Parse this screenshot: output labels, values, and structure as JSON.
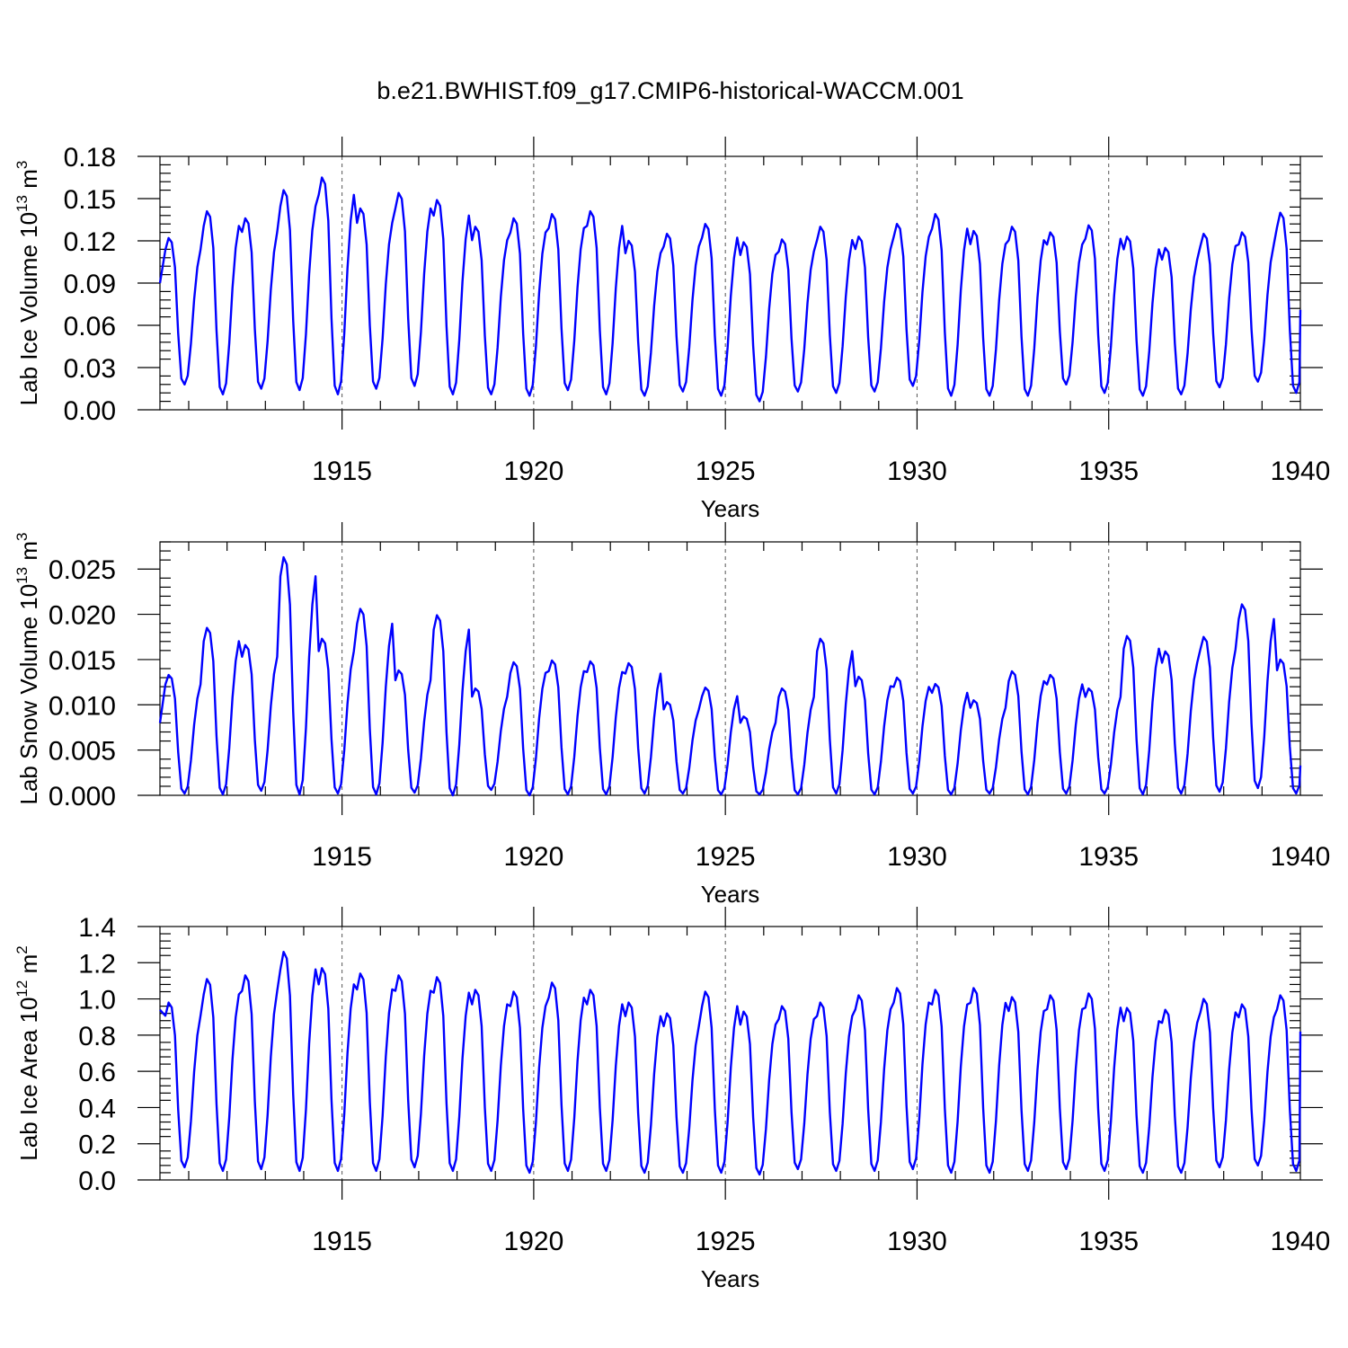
{
  "title": "b.e21.BWHIST.f09_g17.CMIP6-historical-WACCM.001",
  "chart_data": [
    {
      "type": "line",
      "ylabel_base": "Lab Ice Volume 10",
      "ylabel_exp": "13",
      "ylabel_unit": " m",
      "ylabel_unit_exp": "3",
      "xlabel": "Years",
      "xlim": [
        1910.25,
        1940.0
      ],
      "ylim": [
        0.0,
        0.18
      ],
      "xticks": [
        1915,
        1920,
        1925,
        1930,
        1935,
        1940
      ],
      "yticks": [
        0.0,
        0.03,
        0.06,
        0.09,
        0.12,
        0.15,
        0.18
      ],
      "ytick_labels": [
        "0.00",
        "0.03",
        "0.06",
        "0.09",
        "0.12",
        "0.15",
        "0.18"
      ],
      "grid_x": [
        1915,
        1920,
        1925,
        1930,
        1935
      ],
      "color": "#0000ff",
      "annual": [
        {
          "max": 0.122,
          "min": 0.018
        },
        {
          "max": 0.141,
          "min": 0.011
        },
        {
          "max": 0.136,
          "min": 0.015
        },
        {
          "max": 0.156,
          "min": 0.014
        },
        {
          "max": 0.165,
          "min": 0.011
        },
        {
          "max": 0.143,
          "min": 0.015
        },
        {
          "max": 0.154,
          "min": 0.017
        },
        {
          "max": 0.149,
          "min": 0.011
        },
        {
          "max": 0.13,
          "min": 0.011
        },
        {
          "max": 0.136,
          "min": 0.01
        },
        {
          "max": 0.139,
          "min": 0.014
        },
        {
          "max": 0.141,
          "min": 0.011
        },
        {
          "max": 0.12,
          "min": 0.01
        },
        {
          "max": 0.125,
          "min": 0.013
        },
        {
          "max": 0.132,
          "min": 0.01
        },
        {
          "max": 0.119,
          "min": 0.006
        },
        {
          "max": 0.121,
          "min": 0.013
        },
        {
          "max": 0.13,
          "min": 0.012
        },
        {
          "max": 0.123,
          "min": 0.013
        },
        {
          "max": 0.132,
          "min": 0.017
        },
        {
          "max": 0.139,
          "min": 0.01
        },
        {
          "max": 0.127,
          "min": 0.01
        },
        {
          "max": 0.13,
          "min": 0.01
        },
        {
          "max": 0.126,
          "min": 0.018
        },
        {
          "max": 0.131,
          "min": 0.012
        },
        {
          "max": 0.123,
          "min": 0.01
        },
        {
          "max": 0.115,
          "min": 0.011
        },
        {
          "max": 0.125,
          "min": 0.016
        },
        {
          "max": 0.126,
          "min": 0.02
        },
        {
          "max": 0.14,
          "min": 0.012
        }
      ],
      "start_value": 0.09,
      "end_value": 0.071
    },
    {
      "type": "line",
      "ylabel_base": "Lab Snow Volume 10",
      "ylabel_exp": "13",
      "ylabel_unit": " m",
      "ylabel_unit_exp": "3",
      "xlabel": "Years",
      "xlim": [
        1910.25,
        1940.0
      ],
      "ylim": [
        0.0,
        0.028
      ],
      "xticks": [
        1915,
        1920,
        1925,
        1930,
        1935,
        1940
      ],
      "yticks": [
        0.0,
        0.005,
        0.01,
        0.015,
        0.02,
        0.025
      ],
      "ytick_labels": [
        "0.000",
        "0.005",
        "0.010",
        "0.015",
        "0.020",
        "0.025"
      ],
      "grid_x": [
        1915,
        1920,
        1925,
        1930,
        1935
      ],
      "color": "#0000ff",
      "annual": [
        {
          "max": 0.0133,
          "min": 0.0002
        },
        {
          "max": 0.0185,
          "min": 0.0001
        },
        {
          "max": 0.0166,
          "min": 0.0005
        },
        {
          "max": 0.0263,
          "min": 0.0001
        },
        {
          "max": 0.0173,
          "min": 0.0002
        },
        {
          "max": 0.0206,
          "min": 0.0001
        },
        {
          "max": 0.0138,
          "min": 0.0003
        },
        {
          "max": 0.0199,
          "min": 0.0
        },
        {
          "max": 0.0118,
          "min": 0.0006
        },
        {
          "max": 0.0147,
          "min": 0.0
        },
        {
          "max": 0.0149,
          "min": 0.0001
        },
        {
          "max": 0.0148,
          "min": 0.0001
        },
        {
          "max": 0.0146,
          "min": 0.0002
        },
        {
          "max": 0.0103,
          "min": 0.0002
        },
        {
          "max": 0.0119,
          "min": 0.0001
        },
        {
          "max": 0.0087,
          "min": 0.0001
        },
        {
          "max": 0.0118,
          "min": 0.0001
        },
        {
          "max": 0.0173,
          "min": 0.0002
        },
        {
          "max": 0.0131,
          "min": 0.0001
        },
        {
          "max": 0.013,
          "min": 0.0002
        },
        {
          "max": 0.0123,
          "min": 0.0001
        },
        {
          "max": 0.0105,
          "min": 0.0002
        },
        {
          "max": 0.0137,
          "min": 0.0001
        },
        {
          "max": 0.0133,
          "min": 0.0002
        },
        {
          "max": 0.0118,
          "min": 0.0002
        },
        {
          "max": 0.0176,
          "min": 0.0001
        },
        {
          "max": 0.0159,
          "min": 0.0002
        },
        {
          "max": 0.0175,
          "min": 0.0004
        },
        {
          "max": 0.0211,
          "min": 0.0008
        },
        {
          "max": 0.015,
          "min": 0.0002
        }
      ],
      "start_value": 0.008,
      "end_value": 0.0033
    },
    {
      "type": "line",
      "ylabel_base": "Lab Ice Area 10",
      "ylabel_exp": "12",
      "ylabel_unit": " m",
      "ylabel_unit_exp": "2",
      "xlabel": "Years",
      "xlim": [
        1910.25,
        1940.0
      ],
      "ylim": [
        0.0,
        1.4
      ],
      "xticks": [
        1915,
        1920,
        1925,
        1930,
        1935,
        1940
      ],
      "yticks": [
        0.0,
        0.2,
        0.4,
        0.6,
        0.8,
        1.0,
        1.2,
        1.4
      ],
      "ytick_labels": [
        "0.0",
        "0.2",
        "0.4",
        "0.6",
        "0.8",
        "1.0",
        "1.2",
        "1.4"
      ],
      "grid_x": [
        1915,
        1920,
        1925,
        1930,
        1935
      ],
      "color": "#0000ff",
      "annual": [
        {
          "max": 0.98,
          "min": 0.07
        },
        {
          "max": 1.11,
          "min": 0.05
        },
        {
          "max": 1.13,
          "min": 0.06
        },
        {
          "max": 1.26,
          "min": 0.05
        },
        {
          "max": 1.17,
          "min": 0.05
        },
        {
          "max": 1.14,
          "min": 0.05
        },
        {
          "max": 1.13,
          "min": 0.07
        },
        {
          "max": 1.12,
          "min": 0.05
        },
        {
          "max": 1.05,
          "min": 0.05
        },
        {
          "max": 1.04,
          "min": 0.04
        },
        {
          "max": 1.09,
          "min": 0.05
        },
        {
          "max": 1.05,
          "min": 0.05
        },
        {
          "max": 0.98,
          "min": 0.04
        },
        {
          "max": 0.92,
          "min": 0.04
        },
        {
          "max": 1.04,
          "min": 0.04
        },
        {
          "max": 0.93,
          "min": 0.03
        },
        {
          "max": 0.96,
          "min": 0.06
        },
        {
          "max": 0.98,
          "min": 0.05
        },
        {
          "max": 1.02,
          "min": 0.05
        },
        {
          "max": 1.06,
          "min": 0.06
        },
        {
          "max": 1.05,
          "min": 0.04
        },
        {
          "max": 1.06,
          "min": 0.04
        },
        {
          "max": 1.01,
          "min": 0.05
        },
        {
          "max": 1.02,
          "min": 0.06
        },
        {
          "max": 1.03,
          "min": 0.05
        },
        {
          "max": 0.95,
          "min": 0.04
        },
        {
          "max": 0.94,
          "min": 0.04
        },
        {
          "max": 1.0,
          "min": 0.07
        },
        {
          "max": 0.97,
          "min": 0.08
        },
        {
          "max": 1.02,
          "min": 0.05
        }
      ],
      "start_value": 0.94,
      "end_value": 0.82
    }
  ]
}
